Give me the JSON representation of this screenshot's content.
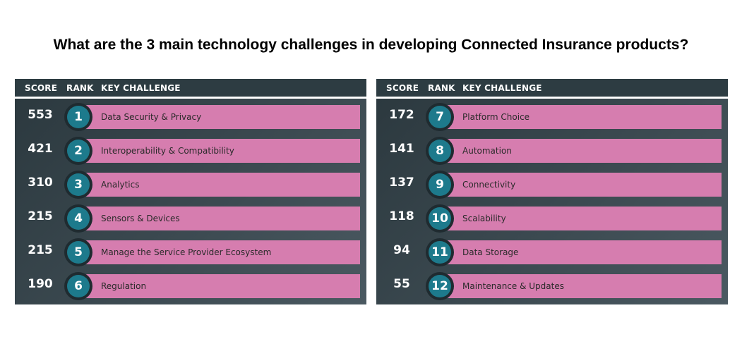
{
  "title": "What are the 3 main technology challenges in developing Connected Insurance products?",
  "headers": {
    "score": "SCORE",
    "rank": "RANK",
    "challenge": "KEY CHALLENGE"
  },
  "colors": {
    "bar": "#d67daf",
    "rank_circle": "#1d7a8c",
    "panel": "#2d3c42"
  },
  "chart_data": {
    "type": "table",
    "title": "What are the 3 main technology challenges in developing Connected Insurance products?",
    "columns": [
      "SCORE",
      "RANK",
      "KEY CHALLENGE"
    ],
    "rows": [
      {
        "score": 553,
        "rank": 1,
        "challenge": "Data Security & Privacy"
      },
      {
        "score": 421,
        "rank": 2,
        "challenge": "Interoperability & Compatibility"
      },
      {
        "score": 310,
        "rank": 3,
        "challenge": "Analytics"
      },
      {
        "score": 215,
        "rank": 4,
        "challenge": "Sensors & Devices"
      },
      {
        "score": 215,
        "rank": 5,
        "challenge": "Manage the Service Provider Ecosystem"
      },
      {
        "score": 190,
        "rank": 6,
        "challenge": "Regulation"
      },
      {
        "score": 172,
        "rank": 7,
        "challenge": "Platform Choice"
      },
      {
        "score": 141,
        "rank": 8,
        "challenge": "Automation"
      },
      {
        "score": 137,
        "rank": 9,
        "challenge": "Connectivity"
      },
      {
        "score": 118,
        "rank": 10,
        "challenge": "Scalability"
      },
      {
        "score": 94,
        "rank": 11,
        "challenge": "Data Storage"
      },
      {
        "score": 55,
        "rank": 12,
        "challenge": "Maintenance & Updates"
      }
    ]
  }
}
